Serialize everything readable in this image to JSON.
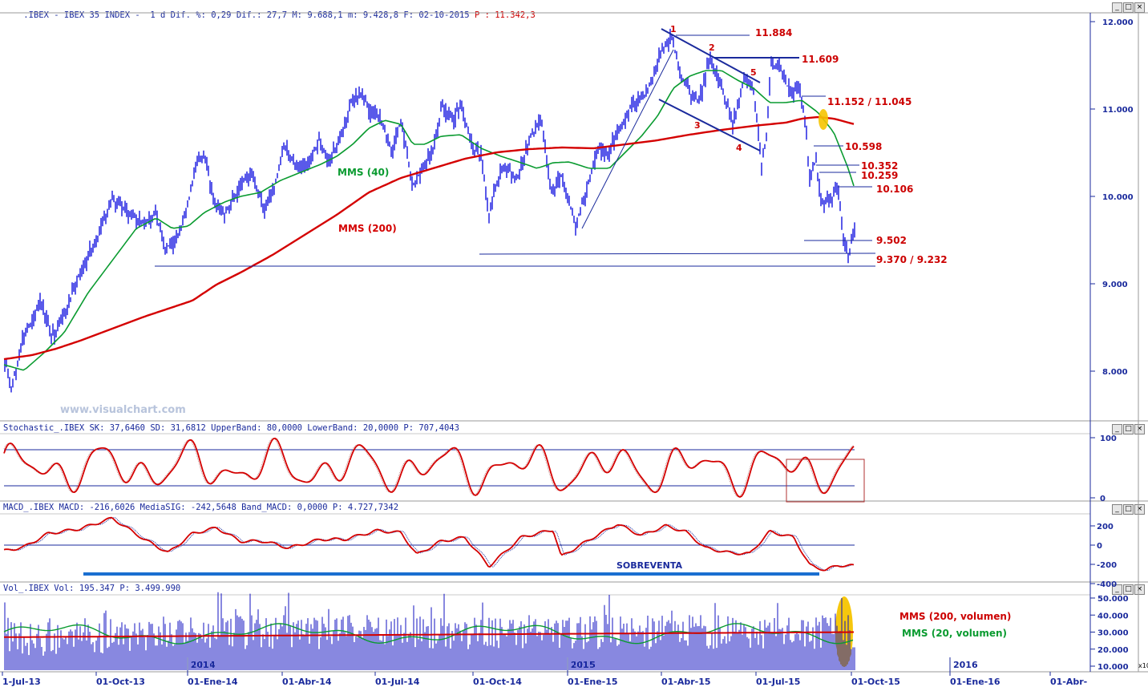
{
  "header": {
    "symbol": ".IBEX - IBEX 35 INDEX -  1 d",
    "stats": "Dif. %: 0,29 Dif.: 27,7 M: 9.688,1 m: 9.428,8 F: 02-10-2015",
    "price": "P : 11.342,3"
  },
  "watermark": "www.visualchart.com",
  "window_buttons": [
    "_",
    "□",
    "×"
  ],
  "x_labels": [
    "1-Jul-13",
    "01-Oct-13",
    "01-Ene-14",
    "01-Abr-14",
    "01-Jul-14",
    "01-Oct-14",
    "01-Ene-15",
    "01-Abr-15",
    "01-Jul-15",
    "01-Oct-15",
    "01-Ene-16",
    "01-Abr-"
  ],
  "year_marks": [
    "2014",
    "2015",
    "2016"
  ],
  "colors": {
    "price": "#0000dd",
    "mms200": "#d40000",
    "mms40": "#0a9b30",
    "annot": "#cc0000",
    "line": "#1a2a9c",
    "volume": "#1010c0",
    "highlight": "#f5c400",
    "sobreventa": "#1a6fd0"
  },
  "price_panel": {
    "y_ticks": [
      "12.000",
      "11.000",
      "10.000",
      "9.000",
      "8.000"
    ],
    "y_values": [
      12000,
      11000,
      10000,
      9000,
      8000
    ],
    "labels": {
      "mms40": "MMS (40)",
      "mms200": "MMS (200)"
    },
    "levels": [
      "11.884",
      "11.609",
      "11.152 / 11.045",
      "10.598",
      "10.352",
      "10.259",
      "10.106",
      "9.502",
      "9.370 / 9.232"
    ],
    "waves": [
      "1",
      "2",
      "3",
      "4",
      "5"
    ]
  },
  "stoch_panel": {
    "header": "Stochastic_.IBEX SK: 37,6460 SD: 31,6812 UpperBand: 80,0000 LowerBand: 20,0000 P: 707,4043",
    "y_ticks": [
      "100",
      "0"
    ]
  },
  "macd_panel": {
    "header": "MACD_.IBEX MACD: -216,6026 MediaSIG: -242,5648 Band_MACD: 0,0000 P: 4.727,7342",
    "y_ticks": [
      "200",
      "0",
      "-200",
      "-400"
    ],
    "sobreventa": "SOBREVENTA"
  },
  "vol_panel": {
    "header": "Vol_.IBEX Vol: 195.347 P: 3.499.990",
    "y_ticks": [
      "50.000",
      "40.000",
      "30.000",
      "20.000",
      "10.000"
    ],
    "multiplier": "x10",
    "labels": {
      "mms200v": "MMS (200, volumen)",
      "mms20v": "MMS (20, volumen)"
    }
  },
  "chart_data": [
    {
      "type": "ohlc",
      "title": ".IBEX - IBEX 35 INDEX - 1 d",
      "x_range": [
        "2013-07-01",
        "2015-10-02"
      ],
      "ylim": [
        7500,
        12200
      ],
      "series": [
        {
          "name": "IBEX 35",
          "x": [
            "2013-07-01",
            "2013-08-01",
            "2013-09-01",
            "2013-10-01",
            "2013-11-01",
            "2013-12-01",
            "2014-01-01",
            "2014-02-01",
            "2014-03-01",
            "2014-04-01",
            "2014-05-01",
            "2014-06-01",
            "2014-07-01",
            "2014-08-01",
            "2014-09-01",
            "2014-10-01",
            "2014-11-01",
            "2014-12-01",
            "2015-01-01",
            "2015-02-01",
            "2015-03-01",
            "2015-04-01",
            "2015-05-01",
            "2015-06-01",
            "2015-07-01",
            "2015-08-01",
            "2015-09-01",
            "2015-10-02"
          ],
          "values": [
            7800,
            8400,
            8800,
            9700,
            9900,
            9350,
            10200,
            10100,
            10400,
            10500,
            10800,
            11200,
            10700,
            10100,
            11000,
            10400,
            10500,
            10150,
            10000,
            10800,
            11300,
            11700,
            11300,
            10900,
            11200,
            10300,
            9700,
            9600
          ]
        },
        {
          "name": "MMS (40)",
          "values": [
            8000,
            8050,
            8400,
            8800,
            9400,
            9500,
            9700,
            9900,
            10100,
            10300,
            10500,
            10800,
            10900,
            10700,
            10600,
            10600,
            10500,
            10400,
            10400,
            10500,
            10900,
            11300,
            11400,
            11200,
            11100,
            10900,
            10100,
            9550
          ]
        },
        {
          "name": "MMS (200)",
          "values": [
            8100,
            8200,
            8300,
            8450,
            8600,
            8750,
            8900,
            9050,
            9300,
            9600,
            9900,
            10150,
            10300,
            10400,
            10450,
            10500,
            10530,
            10560,
            10600,
            10620,
            10680,
            10750,
            10820,
            10870,
            10900,
            10900,
            10880,
            10830
          ]
        }
      ],
      "annotations": [
        "11.884",
        "11.609",
        "11.152 / 11.045",
        "10.598",
        "10.352",
        "10.259",
        "10.106",
        "9.502",
        "9.370 / 9.232"
      ]
    },
    {
      "type": "line",
      "title": "Stochastic_.IBEX",
      "ylim": [
        0,
        100
      ],
      "bands": [
        80,
        20
      ],
      "series": [
        {
          "name": "SK",
          "last": 37.646
        },
        {
          "name": "SD",
          "last": 31.6812
        }
      ]
    },
    {
      "type": "line",
      "title": "MACD_.IBEX",
      "ylim": [
        -400,
        250
      ],
      "series": [
        {
          "name": "MACD",
          "last": -216.6026
        },
        {
          "name": "MediaSIG",
          "last": -242.5648
        }
      ]
    },
    {
      "type": "bar",
      "title": "Vol_.IBEX",
      "ylim": [
        0,
        52000
      ],
      "unit": "x10",
      "series": [
        {
          "name": "Vol",
          "last": 195347
        },
        {
          "name": "MMS (200, volumen)",
          "level": 30000
        },
        {
          "name": "MMS (20, volumen)",
          "level": 29000
        }
      ]
    }
  ]
}
